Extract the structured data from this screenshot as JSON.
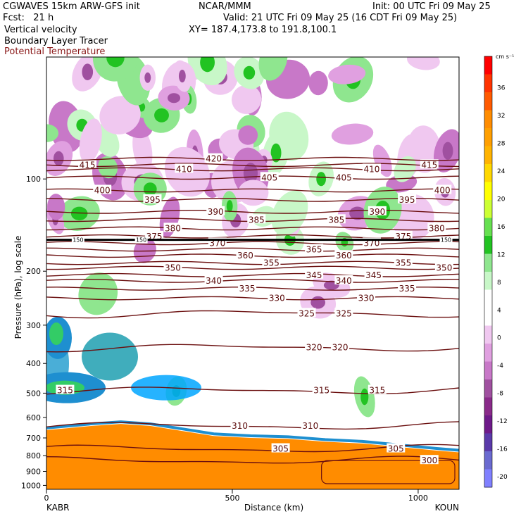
{
  "header": {
    "model": "CGWAVES 15km ARW-GFS init",
    "center": "NCAR/MMM",
    "init": "Init: 00 UTC Fri 09 May 25",
    "fcst": "Fcst:   21 h",
    "valid": "Valid: 21 UTC Fri 09 May 25 (16 CDT Fri 09 May 25)",
    "field1": "Vertical velocity",
    "xy": "XY= 187.4,173.8 to 191.8,100.1",
    "field2": "Boundary Layer Tracer",
    "field3": "Potential Temperature"
  },
  "colors": {
    "theta_line": "#6b0f0f",
    "terrain": "#ff8c00",
    "tropopause": "#000000"
  },
  "chart_data": {
    "type": "heatmap",
    "ylabel": "Pressure (hPa), log scale",
    "xlabel": "Distance (km)",
    "x_ticks": [
      "0",
      "500",
      "1000"
    ],
    "y_ticks": [
      "100",
      "200",
      "300",
      "400",
      "500",
      "600",
      "700",
      "800",
      "900",
      "1000"
    ],
    "endpoints": {
      "left": "KABR",
      "right": "KOUN"
    },
    "xlim": [
      0,
      1110
    ],
    "ylim": [
      1030,
      40
    ],
    "y_scale": "log",
    "colorbar": {
      "unit": "cm s⁻¹",
      "labels": [
        "36",
        "32",
        "28",
        "24",
        "20",
        "16",
        "12",
        "8",
        "4",
        "0",
        "-4",
        "-8",
        "-12",
        "-16",
        "-20"
      ],
      "colors": [
        "#ff0000",
        "#ff3300",
        "#ff5a00",
        "#ff8c00",
        "#ff9f00",
        "#ffb300",
        "#ffd800",
        "#ffff00",
        "#ccff33",
        "#66e050",
        "#22c322",
        "#8fe68f",
        "#c8f7c8",
        "#ffffff",
        "#ffffff",
        "#f0c8f0",
        "#e0a0e0",
        "#c878c8",
        "#a050a0",
        "#8a2a8a",
        "#6e1a8a",
        "#5a3aaa",
        "#6a6ad0",
        "#8080ff"
      ]
    },
    "theta_contours": [
      {
        "label": "415",
        "p": 90,
        "label_x": [
          110,
          1030
        ]
      },
      {
        "label": "420",
        "p": 86,
        "label_x": [
          450
        ]
      },
      {
        "label": "410",
        "p": 93,
        "label_x": [
          370,
          875
        ]
      },
      {
        "label": "405",
        "p": 99,
        "label_x": [
          600,
          800
        ]
      },
      {
        "label": "400",
        "p": 109,
        "label_x": [
          150,
          1065
        ]
      },
      {
        "label": "395",
        "p": 117,
        "label_x": [
          285,
          970
        ]
      },
      {
        "label": "390",
        "p": 128,
        "label_x": [
          455,
          890
        ]
      },
      {
        "label": "385",
        "p": 136,
        "label_x": [
          565,
          780
        ]
      },
      {
        "label": "380",
        "p": 145,
        "label_x": [
          340,
          1050
        ]
      },
      {
        "label": "375",
        "p": 154,
        "label_x": [
          290,
          960
        ]
      },
      {
        "label": "370",
        "p": 162,
        "label_x": [
          460,
          875
        ]
      },
      {
        "label": "365",
        "p": 170,
        "label_x": [
          720
        ]
      },
      {
        "label": "360",
        "p": 178,
        "label_x": [
          535,
          800
        ]
      },
      {
        "label": "355",
        "p": 188,
        "label_x": [
          605,
          960
        ]
      },
      {
        "label": "350",
        "p": 195,
        "label_x": [
          340,
          1070
        ]
      },
      {
        "label": "345",
        "p": 206,
        "label_x": [
          720,
          880
        ]
      },
      {
        "label": "340",
        "p": 215,
        "label_x": [
          450,
          800
        ]
      },
      {
        "label": "335",
        "p": 228,
        "label_x": [
          540,
          970
        ]
      },
      {
        "label": "330",
        "p": 245,
        "label_x": [
          620,
          860
        ]
      },
      {
        "label": "325",
        "p": 275,
        "label_x": [
          700,
          800
        ]
      },
      {
        "label": "320",
        "p": 355,
        "label_x": [
          720,
          790
        ]
      },
      {
        "label": "315",
        "p": 490,
        "label_x": [
          50,
          740,
          890
        ]
      },
      {
        "label": "310",
        "p": 640,
        "label_x": [
          520,
          710
        ]
      },
      {
        "label": "305",
        "p": 760,
        "label_x": [
          630,
          940
        ]
      },
      {
        "label": "300",
        "p": 830,
        "label_x": [
          1030
        ]
      }
    ],
    "tropopause_label": "150"
  }
}
